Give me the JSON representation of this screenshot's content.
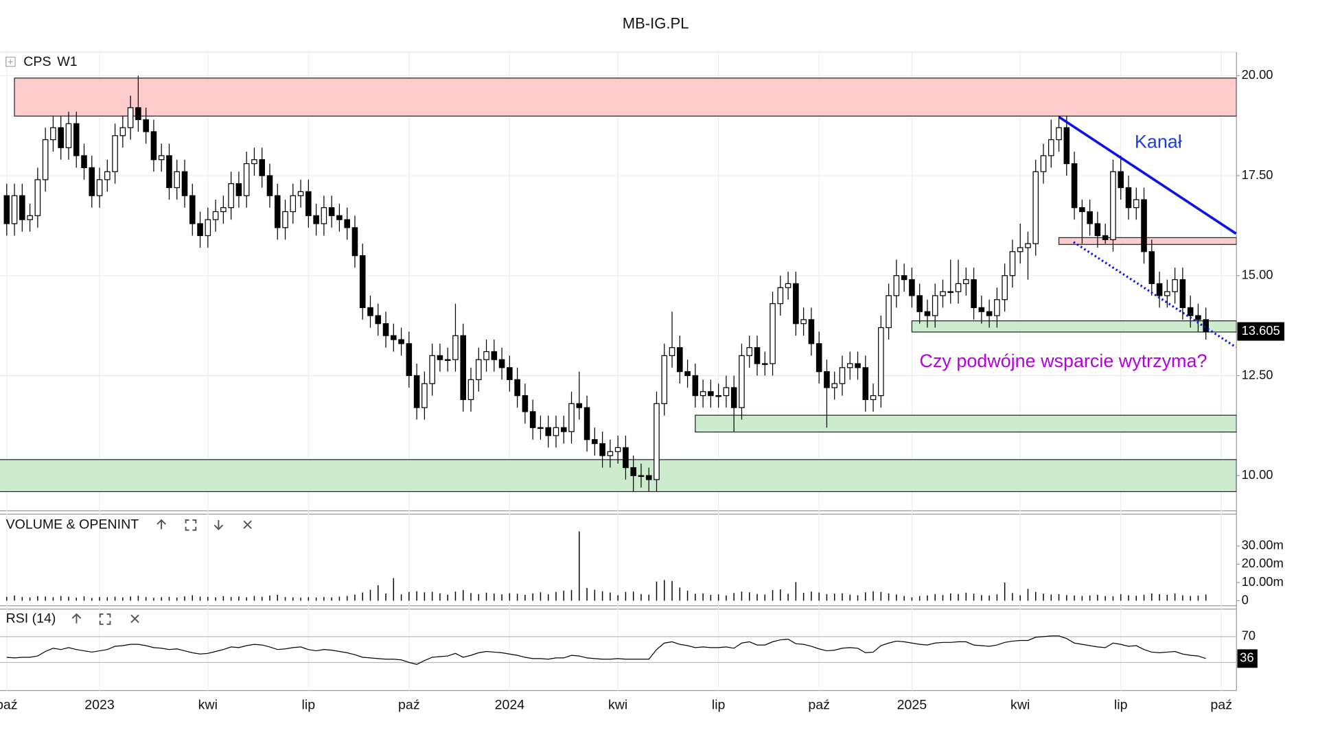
{
  "chart_data": {
    "type": "candlestick",
    "title": "MB-IG.PL",
    "symbol": "CPS",
    "interval": "W1",
    "categories": [
      "paź",
      null,
      null,
      null,
      null,
      null,
      null,
      null,
      null,
      null,
      null,
      null,
      "2023",
      null,
      null,
      null,
      null,
      null,
      null,
      null,
      null,
      null,
      null,
      null,
      null,
      null,
      "kwi",
      null,
      null,
      null,
      null,
      null,
      null,
      null,
      null,
      null,
      null,
      null,
      null,
      "lip",
      null,
      null,
      null,
      null,
      null,
      null,
      null,
      null,
      null,
      null,
      null,
      null,
      "paź",
      null,
      null,
      null,
      null,
      null,
      null,
      null,
      null,
      null,
      null,
      null,
      null,
      "2024",
      null,
      null,
      null,
      null,
      null,
      null,
      null,
      null,
      null,
      null,
      null,
      null,
      null,
      "kwi",
      null,
      null,
      null,
      null,
      null,
      null,
      null,
      null,
      null,
      null,
      null,
      null,
      "lip",
      null,
      null,
      null,
      null,
      null,
      null,
      null,
      null,
      null,
      null,
      null,
      null,
      "paź",
      null,
      null,
      null,
      null,
      null,
      null,
      null,
      null,
      null,
      null,
      null,
      "2025",
      null,
      null,
      null,
      null,
      null,
      null,
      null,
      null,
      null,
      null,
      null,
      null,
      null,
      "kwi",
      null,
      null,
      null,
      null,
      null,
      null,
      null,
      null,
      null,
      null,
      null,
      null,
      "lip",
      null,
      null,
      null,
      null,
      null,
      null,
      null,
      null,
      null,
      null,
      null,
      null,
      "paź"
    ],
    "open": [
      17.0,
      16.3,
      17.0,
      16.4,
      16.5,
      17.4,
      18.4,
      18.7,
      18.2,
      18.8,
      18.0,
      17.7,
      17.0,
      17.4,
      17.6,
      18.5,
      18.7,
      19.2,
      18.9,
      18.6,
      17.9,
      18.0,
      17.2,
      17.6,
      17.0,
      16.3,
      16.0,
      16.4,
      16.6,
      16.7,
      17.3,
      17.0,
      17.8,
      17.9,
      17.5,
      17.0,
      16.2,
      16.6,
      17.0,
      17.1,
      16.5,
      16.3,
      16.7,
      16.5,
      16.4,
      16.2,
      15.5,
      14.2,
      14.0,
      13.8,
      13.5,
      13.4,
      13.3,
      12.5,
      11.7,
      12.3,
      13.0,
      12.9,
      12.9,
      13.5,
      11.9,
      12.4,
      12.9,
      13.1,
      12.9,
      12.7,
      12.4,
      12.0,
      11.6,
      11.2,
      11.2,
      11.0,
      11.2,
      11.1,
      11.8,
      11.7,
      10.9,
      10.8,
      10.5,
      10.6,
      10.7,
      10.2,
      10.0,
      10.0,
      9.9,
      11.8,
      13.0,
      13.2,
      12.6,
      12.5,
      12.0,
      12.1,
      12.0,
      12.0,
      12.2,
      11.7,
      13.0,
      13.2,
      12.8,
      12.8,
      14.3,
      14.7,
      14.8,
      13.8,
      13.9,
      13.3,
      12.6,
      12.2,
      12.3,
      12.7,
      12.8,
      12.7,
      11.9,
      12.0,
      13.7,
      14.5,
      15.0,
      14.9,
      14.5,
      14.1,
      14.0,
      14.5,
      14.6,
      14.6,
      14.8,
      14.9,
      14.2,
      14.1,
      14.0,
      14.4,
      15.0,
      15.6,
      15.7,
      15.8,
      17.6,
      18.0,
      18.4,
      18.7,
      17.8,
      16.7,
      16.6,
      16.3,
      16.0,
      15.9,
      17.6,
      17.2,
      16.7,
      16.9,
      15.6,
      14.8,
      14.5,
      14.6,
      14.9,
      14.2,
      14.0,
      13.9,
      null,
      null
    ],
    "high": [
      17.3,
      17.3,
      17.3,
      16.8,
      17.7,
      18.7,
      19.0,
      19.0,
      19.1,
      19.1,
      18.3,
      18.0,
      17.7,
      17.9,
      18.8,
      19.0,
      19.5,
      20.0,
      19.2,
      18.9,
      18.3,
      18.3,
      17.9,
      17.9,
      17.3,
      16.6,
      16.7,
      16.9,
      17.0,
      17.6,
      17.6,
      18.1,
      18.2,
      18.2,
      17.8,
      17.3,
      16.9,
      17.3,
      17.4,
      17.4,
      16.8,
      17.0,
      17.0,
      16.8,
      16.7,
      16.5,
      15.8,
      14.5,
      14.3,
      14.1,
      13.8,
      13.7,
      13.6,
      12.8,
      12.6,
      13.3,
      13.3,
      13.2,
      14.3,
      13.8,
      12.7,
      13.2,
      13.4,
      13.4,
      13.2,
      13.0,
      12.7,
      12.3,
      11.9,
      11.5,
      11.5,
      11.5,
      11.5,
      12.1,
      12.6,
      12.0,
      11.2,
      11.1,
      10.9,
      11.0,
      11.0,
      10.5,
      10.3,
      10.2,
      12.1,
      13.3,
      14.1,
      13.5,
      12.9,
      12.8,
      12.4,
      12.4,
      12.3,
      12.5,
      12.5,
      13.3,
      13.5,
      13.5,
      13.1,
      14.6,
      15.0,
      15.1,
      15.1,
      14.2,
      14.2,
      13.6,
      12.9,
      12.6,
      13.0,
      13.1,
      13.1,
      13.0,
      12.3,
      14.0,
      14.8,
      15.4,
      15.3,
      15.2,
      14.8,
      14.4,
      14.8,
      14.9,
      15.4,
      15.4,
      15.2,
      15.2,
      14.5,
      14.4,
      14.7,
      15.3,
      15.9,
      16.3,
      16.1,
      17.9,
      18.3,
      18.9,
      19.0,
      19.0,
      18.1,
      16.9,
      16.9,
      16.6,
      16.3,
      17.9,
      18.0,
      17.5,
      17.2,
      17.2,
      15.9,
      15.1,
      14.9,
      15.2,
      15.2,
      14.5,
      14.3,
      14.2,
      null,
      null
    ],
    "low": [
      16.0,
      16.0,
      16.1,
      16.1,
      16.2,
      17.1,
      18.1,
      17.9,
      17.9,
      17.7,
      17.4,
      16.7,
      16.7,
      17.1,
      17.3,
      18.2,
      18.4,
      18.6,
      18.3,
      17.6,
      17.6,
      16.9,
      16.9,
      16.7,
      16.0,
      15.7,
      15.7,
      16.1,
      16.3,
      16.4,
      16.7,
      16.7,
      17.5,
      17.2,
      16.7,
      15.9,
      15.9,
      16.3,
      16.7,
      16.2,
      16.0,
      16.0,
      16.2,
      16.1,
      15.9,
      15.2,
      13.9,
      13.7,
      13.5,
      13.2,
      13.1,
      13.0,
      12.2,
      11.4,
      11.4,
      12.0,
      12.6,
      12.6,
      12.6,
      11.6,
      11.6,
      12.1,
      12.6,
      12.6,
      12.4,
      12.1,
      11.7,
      11.3,
      10.9,
      10.9,
      10.7,
      10.7,
      10.8,
      10.8,
      11.4,
      10.6,
      10.5,
      10.2,
      10.2,
      10.3,
      9.9,
      9.6,
      9.7,
      9.6,
      9.6,
      11.5,
      12.7,
      12.3,
      12.2,
      11.7,
      11.7,
      11.7,
      11.7,
      11.7,
      11.1,
      11.4,
      12.7,
      12.5,
      12.5,
      12.5,
      14.0,
      14.4,
      13.5,
      13.5,
      13.0,
      12.3,
      11.2,
      11.9,
      12.0,
      12.4,
      12.4,
      11.6,
      11.6,
      11.7,
      13.4,
      14.2,
      14.6,
      14.2,
      13.8,
      13.7,
      13.7,
      14.2,
      14.3,
      14.3,
      14.5,
      13.9,
      13.8,
      13.7,
      13.7,
      14.1,
      14.7,
      15.3,
      14.9,
      15.5,
      17.3,
      17.7,
      18.1,
      17.5,
      16.4,
      15.8,
      16.0,
      15.7,
      15.8,
      15.6,
      16.9,
      16.4,
      16.4,
      15.3,
      14.5,
      14.2,
      14.2,
      14.3,
      13.9,
      13.7,
      13.6,
      13.4,
      null,
      null
    ],
    "close": [
      16.3,
      17.0,
      16.4,
      16.5,
      17.4,
      18.4,
      18.7,
      18.2,
      18.8,
      18.0,
      17.7,
      17.0,
      17.4,
      17.6,
      18.5,
      18.7,
      19.2,
      18.9,
      18.6,
      17.9,
      18.0,
      17.2,
      17.6,
      17.0,
      16.3,
      16.0,
      16.4,
      16.6,
      16.7,
      17.3,
      17.0,
      17.8,
      17.9,
      17.5,
      17.0,
      16.2,
      16.6,
      17.0,
      17.1,
      16.5,
      16.3,
      16.7,
      16.5,
      16.4,
      16.2,
      15.5,
      14.2,
      14.0,
      13.8,
      13.5,
      13.4,
      13.3,
      12.5,
      11.7,
      12.3,
      13.0,
      12.9,
      12.9,
      13.5,
      11.9,
      12.4,
      12.9,
      13.1,
      12.9,
      12.7,
      12.4,
      12.0,
      11.6,
      11.2,
      11.2,
      11.0,
      11.2,
      11.1,
      11.8,
      11.7,
      10.9,
      10.8,
      10.5,
      10.6,
      10.7,
      10.2,
      10.0,
      10.0,
      9.9,
      11.8,
      13.0,
      13.2,
      12.6,
      12.5,
      12.0,
      12.1,
      12.0,
      12.0,
      12.2,
      11.7,
      13.0,
      13.2,
      12.8,
      12.8,
      14.3,
      14.7,
      14.8,
      13.8,
      13.9,
      13.3,
      12.6,
      12.2,
      12.3,
      12.7,
      12.8,
      12.7,
      11.9,
      12.0,
      13.7,
      14.5,
      15.0,
      14.9,
      14.5,
      14.1,
      14.0,
      14.5,
      14.6,
      14.6,
      14.8,
      14.9,
      14.2,
      14.1,
      14.0,
      14.4,
      15.0,
      15.6,
      15.7,
      15.8,
      17.6,
      18.0,
      18.4,
      18.7,
      17.8,
      16.7,
      16.6,
      16.3,
      16.0,
      15.9,
      17.6,
      17.2,
      16.7,
      16.9,
      15.6,
      14.8,
      14.5,
      14.6,
      14.9,
      14.2,
      14.0,
      13.9,
      13.605,
      null,
      null
    ],
    "ylim": [
      9.12,
      20.59
    ],
    "yticks": [
      {
        "value": 10,
        "label": "10.00"
      },
      {
        "value": 12.5,
        "label": "12.50"
      },
      {
        "value": 15,
        "label": "15.00"
      },
      {
        "value": 17.5,
        "label": "17.50"
      },
      {
        "value": 20,
        "label": "20.00"
      }
    ],
    "grid": true,
    "up_color": "#ffffff",
    "down_color": "#000000",
    "zones": [
      {
        "low": 18.99,
        "high": 19.94,
        "from": 1,
        "color": "#fdcccc"
      },
      {
        "low": 9.6,
        "high": 10.4,
        "from": -1,
        "color": "#cdeccd"
      },
      {
        "low": 11.09,
        "high": 11.51,
        "from": 89,
        "color": "#cdeccd"
      },
      {
        "low": 13.59,
        "high": 13.87,
        "from": 117,
        "color": "#cdeccd"
      },
      {
        "low": 15.78,
        "high": 15.95,
        "from": 136,
        "color": "#fdcccc"
      }
    ],
    "trendlines": [
      {
        "from": [
          136,
          18.97
        ],
        "to": [
          158.9,
          16.05
        ],
        "color": "#0a14e6",
        "style": "solid"
      },
      {
        "from": [
          137.9,
          15.84
        ],
        "to": [
          158.9,
          13.21
        ],
        "color": "#0a14e6",
        "style": "dotted"
      }
    ],
    "annotations": [
      {
        "text": "Kanał",
        "color": "#1f3fdc"
      },
      {
        "text": "Czy podwójne wsparcie wytrzyma?",
        "color": "#b400e0"
      }
    ],
    "volume": {
      "title": "VOLUME & OPENINT",
      "values": [
        2.1,
        2.8,
        2.0,
        1.8,
        2.5,
        2.3,
        1.9,
        2.6,
        2.2,
        1.7,
        2.4,
        1.5,
        2.0,
        1.9,
        2.2,
        1.8,
        2.3,
        2.7,
        2.0,
        1.6,
        1.9,
        2.1,
        1.7,
        2.4,
        3.0,
        2.2,
        2.1,
        1.8,
        2.5,
        2.0,
        2.3,
        1.9,
        2.6,
        2.1,
        2.8,
        3.2,
        2.0,
        1.8,
        1.6,
        1.9,
        1.7,
        2.0,
        1.8,
        2.2,
        2.6,
        3.4,
        4.5,
        6.0,
        8.5,
        4.0,
        12.4,
        3.5,
        4.8,
        5.2,
        4.6,
        4.9,
        4.0,
        3.3,
        5.0,
        5.8,
        4.2,
        3.6,
        4.4,
        3.9,
        3.5,
        4.1,
        3.8,
        3.2,
        4.0,
        4.6,
        3.5,
        4.8,
        5.5,
        5.9,
        38.0,
        7.0,
        6.0,
        5.2,
        4.5,
        3.0,
        4.8,
        5.0,
        3.6,
        3.3,
        10.5,
        11.3,
        10.8,
        7.2,
        5.5,
        3.8,
        4.0,
        3.2,
        3.5,
        2.9,
        4.2,
        5.0,
        4.6,
        3.7,
        3.4,
        5.8,
        6.2,
        3.8,
        10.2,
        4.3,
        5.0,
        4.5,
        3.6,
        3.9,
        4.1,
        3.3,
        3.0,
        4.6,
        5.2,
        4.8,
        4.0,
        3.4,
        2.6,
        1.8,
        2.5,
        2.9,
        3.6,
        3.1,
        4.0,
        3.7,
        4.4,
        3.9,
        3.1,
        2.8,
        3.5,
        10.0,
        4.2,
        3.0,
        6.5,
        4.8,
        3.9,
        3.4,
        3.6,
        3.1,
        2.8,
        2.6,
        2.9,
        3.2,
        2.5,
        2.4,
        3.6,
        3.0,
        2.7,
        3.3,
        4.0,
        3.6,
        3.2,
        4.0,
        3.0,
        2.6,
        2.8,
        3.4,
        null,
        null
      ],
      "color": "#000000",
      "ylim": [
        0,
        44.7
      ],
      "yticks": [
        0,
        {
          "value": 10,
          "label": "10.00m"
        },
        {
          "value": 20,
          "label": "20.00m"
        },
        {
          "value": 30,
          "label": "30.00m"
        }
      ]
    },
    "rsi": {
      "title": "RSI (14)",
      "values": [
        38,
        37,
        38,
        38,
        40,
        47,
        52,
        50,
        53,
        50,
        48,
        46,
        48,
        50,
        55,
        56,
        58,
        58,
        56,
        53,
        52,
        50,
        51,
        48,
        45,
        43,
        44,
        47,
        50,
        54,
        53,
        56,
        58,
        57,
        54,
        50,
        51,
        53,
        54,
        50,
        48,
        50,
        49,
        47,
        45,
        42,
        38,
        37,
        36,
        35,
        35,
        34,
        30,
        27,
        33,
        38,
        39,
        40,
        44,
        38,
        41,
        45,
        47,
        46,
        45,
        43,
        41,
        38,
        36,
        36,
        35,
        37,
        37,
        41,
        40,
        37,
        36,
        35,
        35,
        36,
        35,
        35,
        35,
        35,
        50,
        60,
        62,
        58,
        56,
        53,
        54,
        53,
        53,
        54,
        52,
        60,
        62,
        57,
        57,
        62,
        65,
        66,
        59,
        58,
        55,
        51,
        48,
        49,
        52,
        53,
        52,
        45,
        46,
        56,
        60,
        63,
        62,
        60,
        58,
        57,
        60,
        61,
        61,
        62,
        62,
        57,
        56,
        55,
        57,
        61,
        63,
        64,
        64,
        69,
        70,
        71,
        71,
        67,
        60,
        58,
        56,
        54,
        53,
        60,
        58,
        55,
        56,
        50,
        46,
        45,
        46,
        47,
        43,
        41,
        40,
        36,
        null,
        null
      ],
      "color": "#000000",
      "ylim": [
        -11,
        110
      ],
      "yticks": [
        70
      ],
      "levels": [
        70,
        30
      ]
    }
  }
}
